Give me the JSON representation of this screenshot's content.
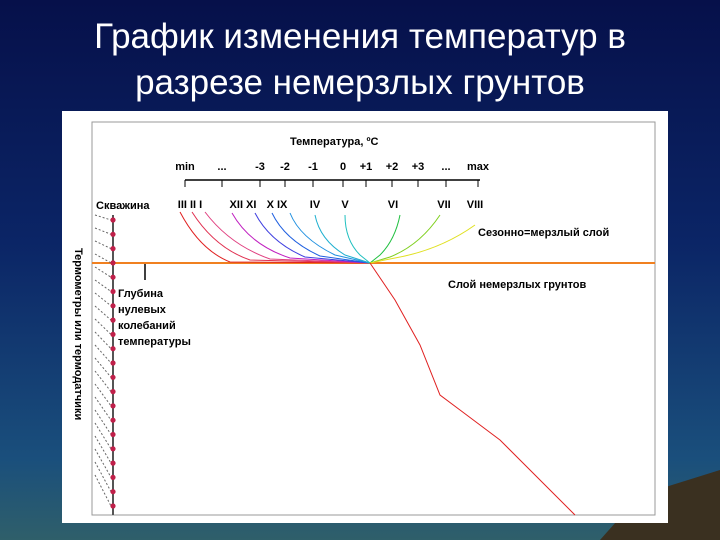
{
  "title": [
    "График изменения температур в",
    "разрезе немерзлых грунтов"
  ],
  "diagram": {
    "axis_title": "Температура, ºС",
    "scale_labels": [
      "min",
      "...",
      "-3",
      "-2",
      "-1",
      "0",
      "+1",
      "+2",
      "+3",
      "...",
      "max"
    ],
    "month_labels": [
      "III II I",
      "XII XI",
      "X IX",
      "IV",
      "V",
      "VI",
      "VII",
      "VIII"
    ],
    "borehole": "Скважина",
    "seasonal_layer": "Сезонно=мерзлый слой",
    "permafrost_free_layer": "Слой немерзлых грунтов",
    "zero_amplitude_depth": [
      "Глубина",
      "нулевых",
      "колебаний",
      "температуры"
    ],
    "sensors": "Термометры или термодатчики"
  }
}
